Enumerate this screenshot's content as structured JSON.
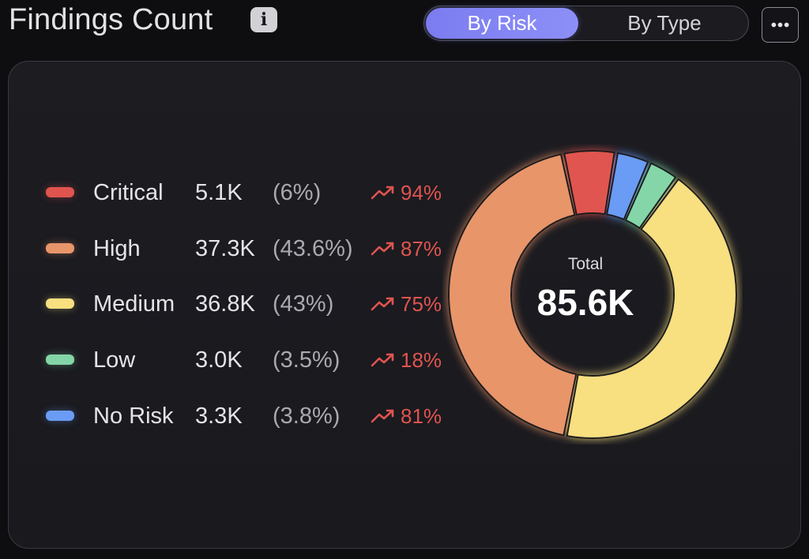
{
  "header": {
    "title": "Findings Count",
    "info_icon": "info-icon",
    "toggle": {
      "options": [
        "By Risk",
        "By Type"
      ],
      "selected": "By Risk"
    },
    "more_icon": "more-horizontal-icon"
  },
  "legend": [
    {
      "label": "Critical",
      "value": "5.1K",
      "percent": "(6%)",
      "trend": "94%",
      "color": "#e0544f"
    },
    {
      "label": "High",
      "value": "37.3K",
      "percent": "(43.6%)",
      "trend": "87%",
      "color": "#e8956a"
    },
    {
      "label": "Medium",
      "value": "36.8K",
      "percent": "(43%)",
      "trend": "75%",
      "color": "#f8df80"
    },
    {
      "label": "Low",
      "value": "3.0K",
      "percent": "(3.5%)",
      "trend": "18%",
      "color": "#84d6a8"
    },
    {
      "label": "No Risk",
      "value": "3.3K",
      "percent": "(3.8%)",
      "trend": "81%",
      "color": "#6b9cf5"
    }
  ],
  "trend_color": "#e0544f",
  "chart_data": {
    "type": "pie",
    "variant": "donut",
    "categories": [
      "Critical",
      "No Risk",
      "Low",
      "Medium",
      "High"
    ],
    "values": [
      5.1,
      3.3,
      3.0,
      36.8,
      37.3
    ],
    "unit": "K",
    "colors": [
      "#e0544f",
      "#6b9cf5",
      "#84d6a8",
      "#f8df80",
      "#e8956a"
    ],
    "center_label": "Total",
    "center_value": "85.6K"
  }
}
